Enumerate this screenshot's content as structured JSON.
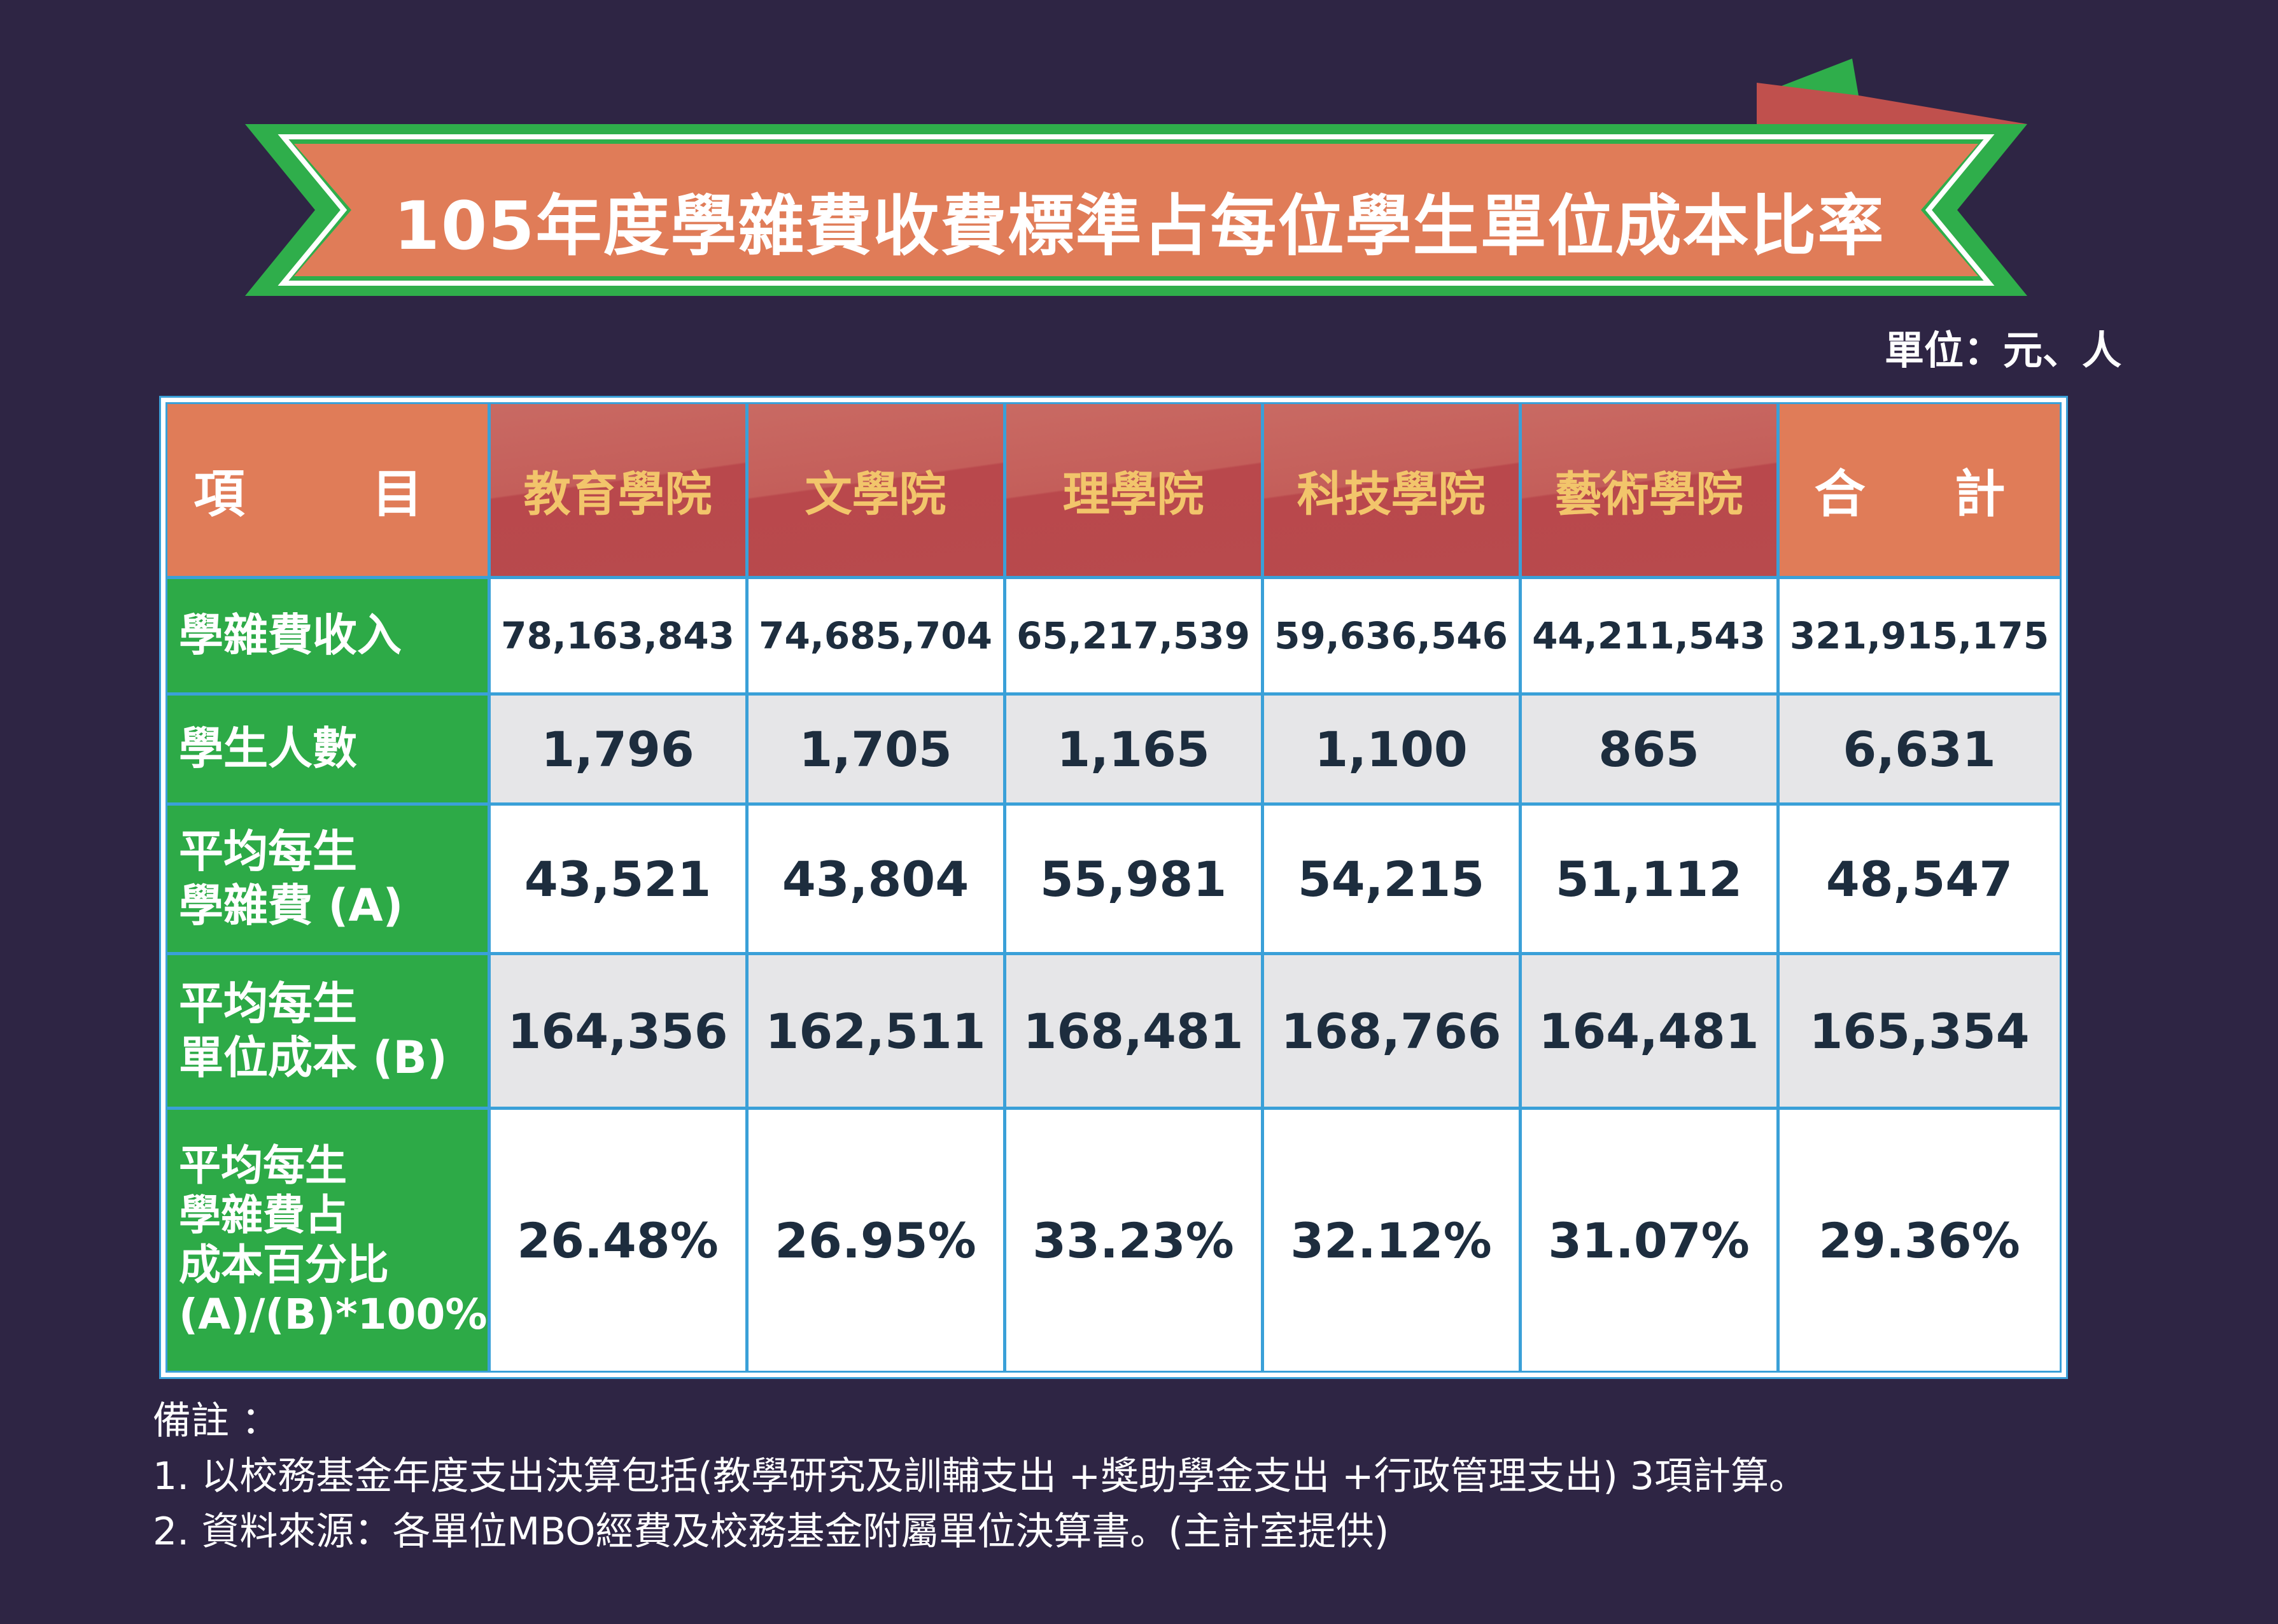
{
  "title": "105年度學雜費收費標準占每位學生單位成本比率",
  "unit": "單位：元、人",
  "colors": {
    "background": "#2e2544",
    "banner_green": "#2fae4b",
    "banner_fill": "#e07c58",
    "ribbon_tail": "#c0504d",
    "header_college": "#c0504d",
    "header_text_gold": "#f2c56b",
    "row_label_green": "#2daa47",
    "grid_blue": "#3aa0d8"
  },
  "chart_data": {
    "type": "table",
    "columns": [
      "項　目",
      "教育學院",
      "文學院",
      "理學院",
      "科技學院",
      "藝術學院",
      "合　計"
    ],
    "rows": [
      {
        "label": "學雜費收入",
        "values": [
          "78,163,843",
          "74,685,704",
          "65,217,539",
          "59,636,546",
          "44,211,543",
          "321,915,175"
        ]
      },
      {
        "label": "學生人數",
        "values": [
          "1,796",
          "1,705",
          "1,165",
          "1,100",
          "865",
          "6,631"
        ]
      },
      {
        "label": "平均每生\n學雜費 (A)",
        "values": [
          "43,521",
          "43,804",
          "55,981",
          "54,215",
          "51,112",
          "48,547"
        ]
      },
      {
        "label": "平均每生\n單位成本 (B)",
        "values": [
          "164,356",
          "162,511",
          "168,481",
          "168,766",
          "164,481",
          "165,354"
        ]
      },
      {
        "label": "平均每生\n學雜費占\n成本百分比\n(A)/(B)*100%",
        "values": [
          "26.48%",
          "26.95%",
          "33.23%",
          "32.12%",
          "31.07%",
          "29.36%"
        ]
      }
    ]
  },
  "notes": {
    "heading": "備註 ：",
    "line1": "1. 以校務基金年度支出決算包括(教學研究及訓輔支出 +獎助學金支出 +行政管理支出) 3項計算。",
    "line2": "2. 資料來源：各單位MBO經費及校務基金附屬單位決算書。(主計室提供)"
  }
}
